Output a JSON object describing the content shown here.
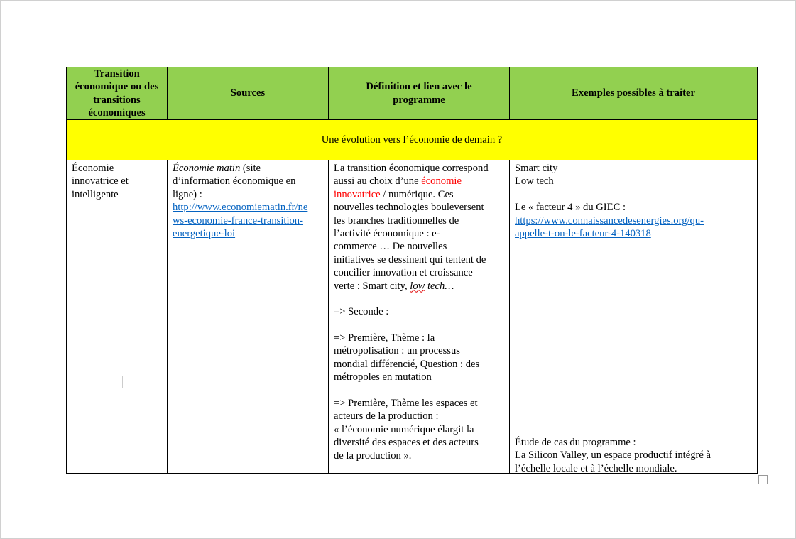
{
  "header": {
    "col1": "Transition économique ou des transitions économiques",
    "col2": "Sources",
    "col3": "Définition et lien avec le programme",
    "col4": "Exemples possibles à traiter"
  },
  "section_title": "Une évolution vers l’économie de demain ?",
  "row": {
    "transition_lines": [
      "Économie",
      "innovatrice et",
      "intelligente"
    ],
    "sources": {
      "title_italic": "Économie matin",
      "title_rest": " (site",
      "line2": "d’information économique en",
      "line3": "ligne) :",
      "link_lines": [
        "http://www.economiematin.fr/ne",
        "ws-economie-france-transition-",
        "energetique-loi"
      ]
    },
    "definition": {
      "l1": "La transition économique correspond",
      "l2a": "aussi au choix d’une ",
      "l2red": "économie",
      "l3red": "innovatrice",
      "l3b": " / numérique. Ces",
      "l4": "nouvelles technologies bouleversent",
      "l5": "les branches traditionnelles de",
      "l6": "l’activité économique : e-",
      "l7": "commerce … De nouvelles",
      "l8": "initiatives se dessinent qui tentent de",
      "l9": "concilier innovation et croissance",
      "l10a": "verte : Smart city, ",
      "l10low": "low",
      "l10b": " tech…",
      "seconde": "=> Seconde :",
      "premiere1": [
        "=> Première, Thème : la",
        "métropolisation : un processus",
        "mondial différencié, Question : des",
        "métropoles en mutation"
      ],
      "premiere2": [
        "=> Première, Thème les espaces et",
        "acteurs de la production :",
        "« l’économie numérique élargit la",
        "diversité des espaces et des acteurs",
        "de la production »."
      ]
    },
    "examples": {
      "l1": "Smart city",
      "l2": "Low tech",
      "l3": "Le « facteur 4 » du GIEC :",
      "link_lines": [
        "https://www.connaissancedesenergies.org/qu-",
        "appelle-t-on-le-facteur-4-140318"
      ],
      "case_lines": [
        "Étude de cas du programme :",
        "La Silicon Valley, un espace productif intégré à",
        "l’échelle locale et à l’échelle mondiale."
      ]
    }
  },
  "colors": {
    "header_bg": "#92d050",
    "section_bg": "#ffff00",
    "highlight": "#ff0000",
    "link": "#0563c1"
  }
}
